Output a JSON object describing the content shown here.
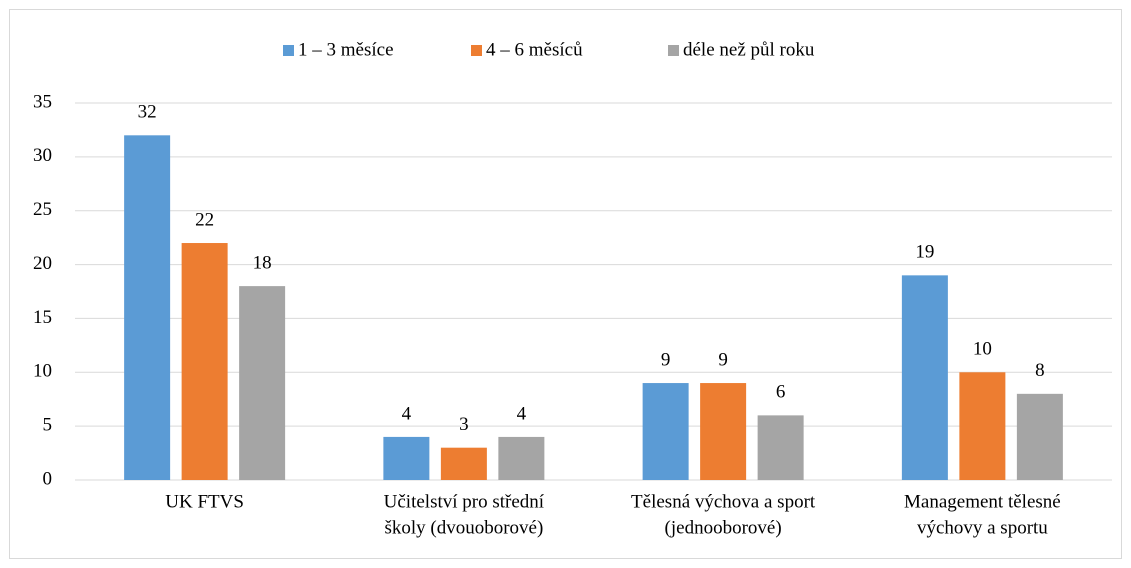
{
  "chart_data": {
    "type": "bar",
    "categories": [
      [
        "UK FTVS"
      ],
      [
        "Učitelství pro střední",
        "školy (dvouoborové)"
      ],
      [
        "Tělesná výchova a sport",
        "(jednooborové)"
      ],
      [
        "Management tělesné",
        "výchovy a sportu"
      ]
    ],
    "series": [
      {
        "name": "1 – 3 měsíce",
        "color": "#5b9bd5",
        "values": [
          32,
          4,
          9,
          19
        ]
      },
      {
        "name": "4 – 6 měsíců",
        "color": "#ed7d31",
        "values": [
          22,
          3,
          9,
          10
        ]
      },
      {
        "name": "déle než půl roku",
        "color": "#a5a5a5",
        "values": [
          18,
          4,
          6,
          8
        ]
      }
    ],
    "ylim": [
      0,
      35
    ],
    "yticks": [
      0,
      5,
      10,
      15,
      20,
      25,
      30,
      35
    ],
    "grid": true,
    "legend": "top"
  }
}
